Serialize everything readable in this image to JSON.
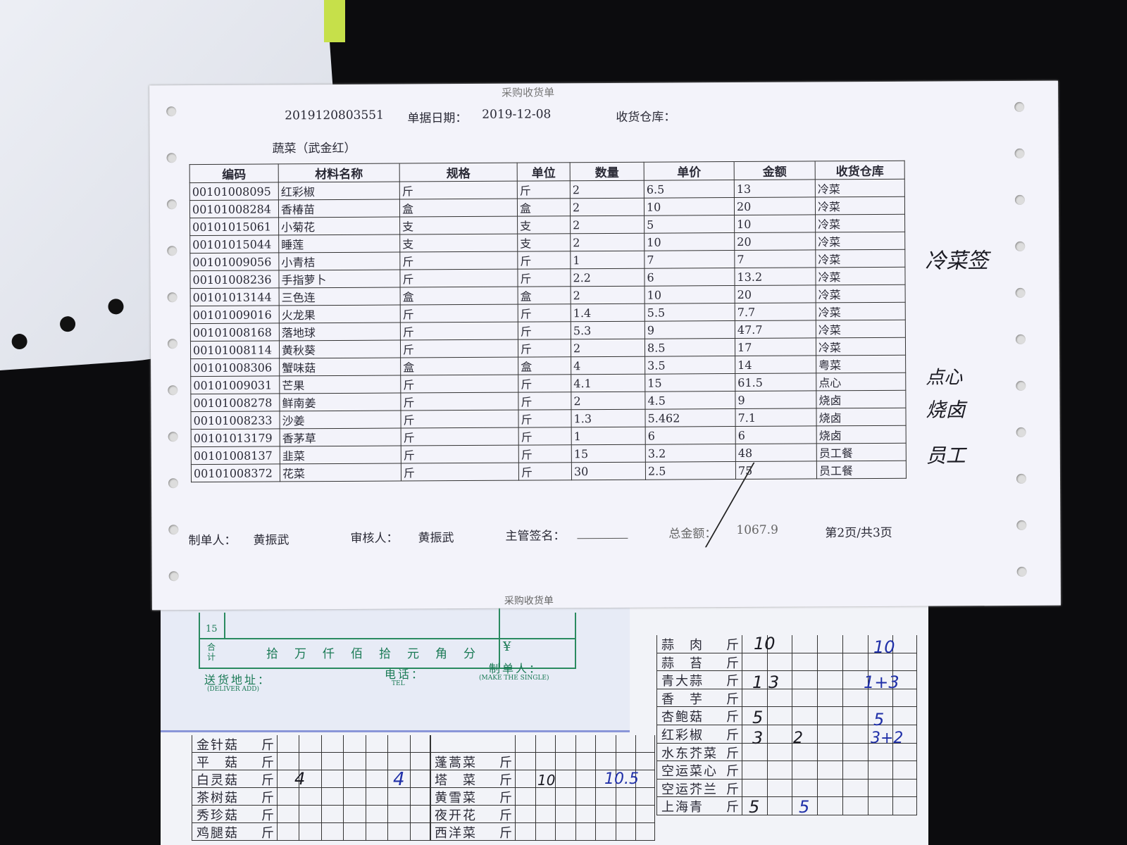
{
  "receipt": {
    "title": "采购收货单",
    "doc_no": "2019120803551",
    "date_label": "单据日期：",
    "date": "2019-12-08",
    "warehouse_label": "收货仓库：",
    "supplier": "蔬菜（武金红）",
    "columns": [
      "编码",
      "材料名称",
      "规格",
      "单位",
      "数量",
      "单价",
      "金额",
      "收货仓库"
    ],
    "rows": [
      [
        "00101008095",
        "红彩椒",
        "斤",
        "斤",
        "2",
        "6.5",
        "13",
        "冷菜"
      ],
      [
        "00101008284",
        "香椿苗",
        "盒",
        "盒",
        "2",
        "10",
        "20",
        "冷菜"
      ],
      [
        "00101015061",
        "小菊花",
        "支",
        "支",
        "2",
        "5",
        "10",
        "冷菜"
      ],
      [
        "00101015044",
        "睡莲",
        "支",
        "支",
        "2",
        "10",
        "20",
        "冷菜"
      ],
      [
        "00101009056",
        "小青桔",
        "斤",
        "斤",
        "1",
        "7",
        "7",
        "冷菜"
      ],
      [
        "00101008236",
        "手指萝卜",
        "斤",
        "斤",
        "2.2",
        "6",
        "13.2",
        "冷菜"
      ],
      [
        "00101013144",
        "三色连",
        "盒",
        "盒",
        "2",
        "10",
        "20",
        "冷菜"
      ],
      [
        "00101009016",
        "火龙果",
        "斤",
        "斤",
        "1.4",
        "5.5",
        "7.7",
        "冷菜"
      ],
      [
        "00101008168",
        "落地球",
        "斤",
        "斤",
        "5.3",
        "9",
        "47.7",
        "冷菜"
      ],
      [
        "00101008114",
        "黄秋葵",
        "斤",
        "斤",
        "2",
        "8.5",
        "17",
        "冷菜"
      ],
      [
        "00101008306",
        "蟹味菇",
        "盒",
        "盒",
        "4",
        "3.5",
        "14",
        "粤菜"
      ],
      [
        "00101009031",
        "芒果",
        "斤",
        "斤",
        "4.1",
        "15",
        "61.5",
        "点心"
      ],
      [
        "00101008278",
        "鲜南姜",
        "斤",
        "斤",
        "2",
        "4.5",
        "9",
        "烧卤"
      ],
      [
        "00101008233",
        "沙姜",
        "斤",
        "斤",
        "1.3",
        "5.462",
        "7.1",
        "烧卤"
      ],
      [
        "00101013179",
        "香茅草",
        "斤",
        "斤",
        "1",
        "6",
        "6",
        "烧卤"
      ],
      [
        "00101008137",
        "韭菜",
        "斤",
        "斤",
        "15",
        "3.2",
        "48",
        "员工餐"
      ],
      [
        "00101008372",
        "花菜",
        "斤",
        "斤",
        "30",
        "2.5",
        "75",
        "员工餐"
      ]
    ],
    "footer": {
      "maker_label": "制单人：",
      "maker": "黄振武",
      "reviewer_label": "审核人：",
      "reviewer": "黄振武",
      "supervisor_label": "主管签名：",
      "total_label": "总金额：",
      "total": "1067.9",
      "page": "第2页/共3页"
    },
    "next_title": "采购收货单"
  },
  "slip": {
    "row_no": "15",
    "total_label": "合计",
    "units": [
      "拾",
      "万",
      "仟",
      "佰",
      "拾",
      "元",
      "角",
      "分"
    ],
    "currency": "¥",
    "address_label": "送货地址：",
    "address_en": "(DELIVER ADD)",
    "tel_label": "电话：",
    "tel_en": "TEL",
    "maker_label": "制单人：",
    "maker_en": "(MAKE THE SINGLE)"
  },
  "order_sheet": {
    "left_items": [
      "金针菇",
      "平　菇",
      "白灵菇",
      "茶树菇",
      "秀珍菇",
      "鸡腿菇"
    ],
    "middle_items": [
      "",
      "蓬蒿菜",
      "塔　菜",
      "黄雪菜",
      "夜开花",
      "西洋菜"
    ],
    "right_items": [
      "蒜　肉",
      "蒜　苔",
      "青大蒜",
      "香　芋",
      "杏鲍菇",
      "红彩椒",
      "水东芥菜",
      "空运菜心",
      "空运芥兰",
      "上海青"
    ],
    "unit": "斤",
    "handwritten": {
      "garlic_meat": "10",
      "garlic_meat_total": "10",
      "green_garlic": "1 3",
      "green_garlic_total": "1+3",
      "king_oyster": "5",
      "king_oyster_total": "5",
      "pepper": "3",
      "pepper_b": "2",
      "pepper_total": "3+2",
      "white_mushroom": "4",
      "white_mushroom_b": "4",
      "tacai": "10",
      "tacai_b": "10.5",
      "shanghai": "5",
      "shanghai_b": "5"
    }
  },
  "annotations": {
    "sign_cold": "冷菜签",
    "sign_dim": "点心",
    "sign_roast": "烧卤",
    "sign_staff": "员工"
  }
}
